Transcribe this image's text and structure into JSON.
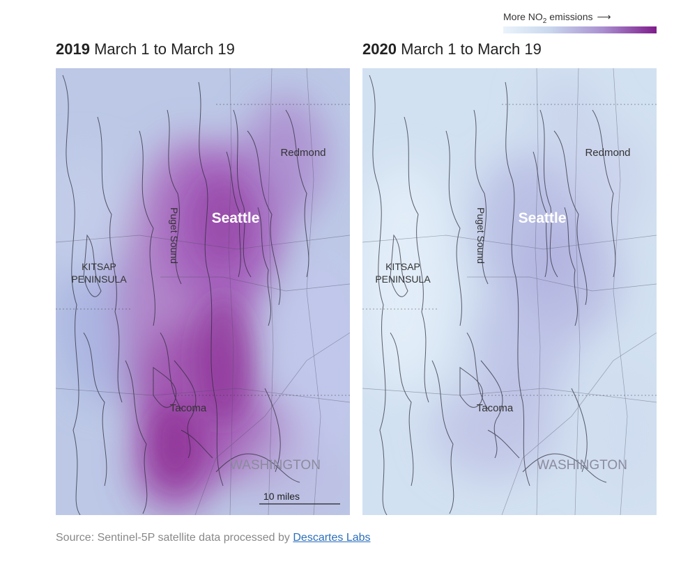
{
  "legend": {
    "label_prefix": "More NO",
    "label_sub": "2",
    "label_suffix": " emissions",
    "arrow": "⟶",
    "color_low": "#eaf3fb",
    "color_high": "#7e1c8b"
  },
  "panels": [
    {
      "year": "2019",
      "range": " March 1 to March 19",
      "labels": {
        "sound": "Puget Sound",
        "city": "Seattle",
        "redmond": "Redmond",
        "kitsap_1": "KITSAP",
        "kitsap_2": "PENINSULA",
        "tacoma": "Tacoma",
        "state": "WASHINGTON",
        "scale": "10 miles"
      }
    },
    {
      "year": "2020",
      "range": " March 1 to March 19",
      "labels": {
        "sound": "Puget Sound",
        "city": "Seattle",
        "redmond": "Redmond",
        "kitsap_1": "KITSAP",
        "kitsap_2": "PENINSULA",
        "tacoma": "Tacoma",
        "state": "WASHINGTON"
      }
    }
  ],
  "source": {
    "prefix": "Source: Sentinel-5P satellite data processed by ",
    "link_text": "Descartes Labs"
  }
}
